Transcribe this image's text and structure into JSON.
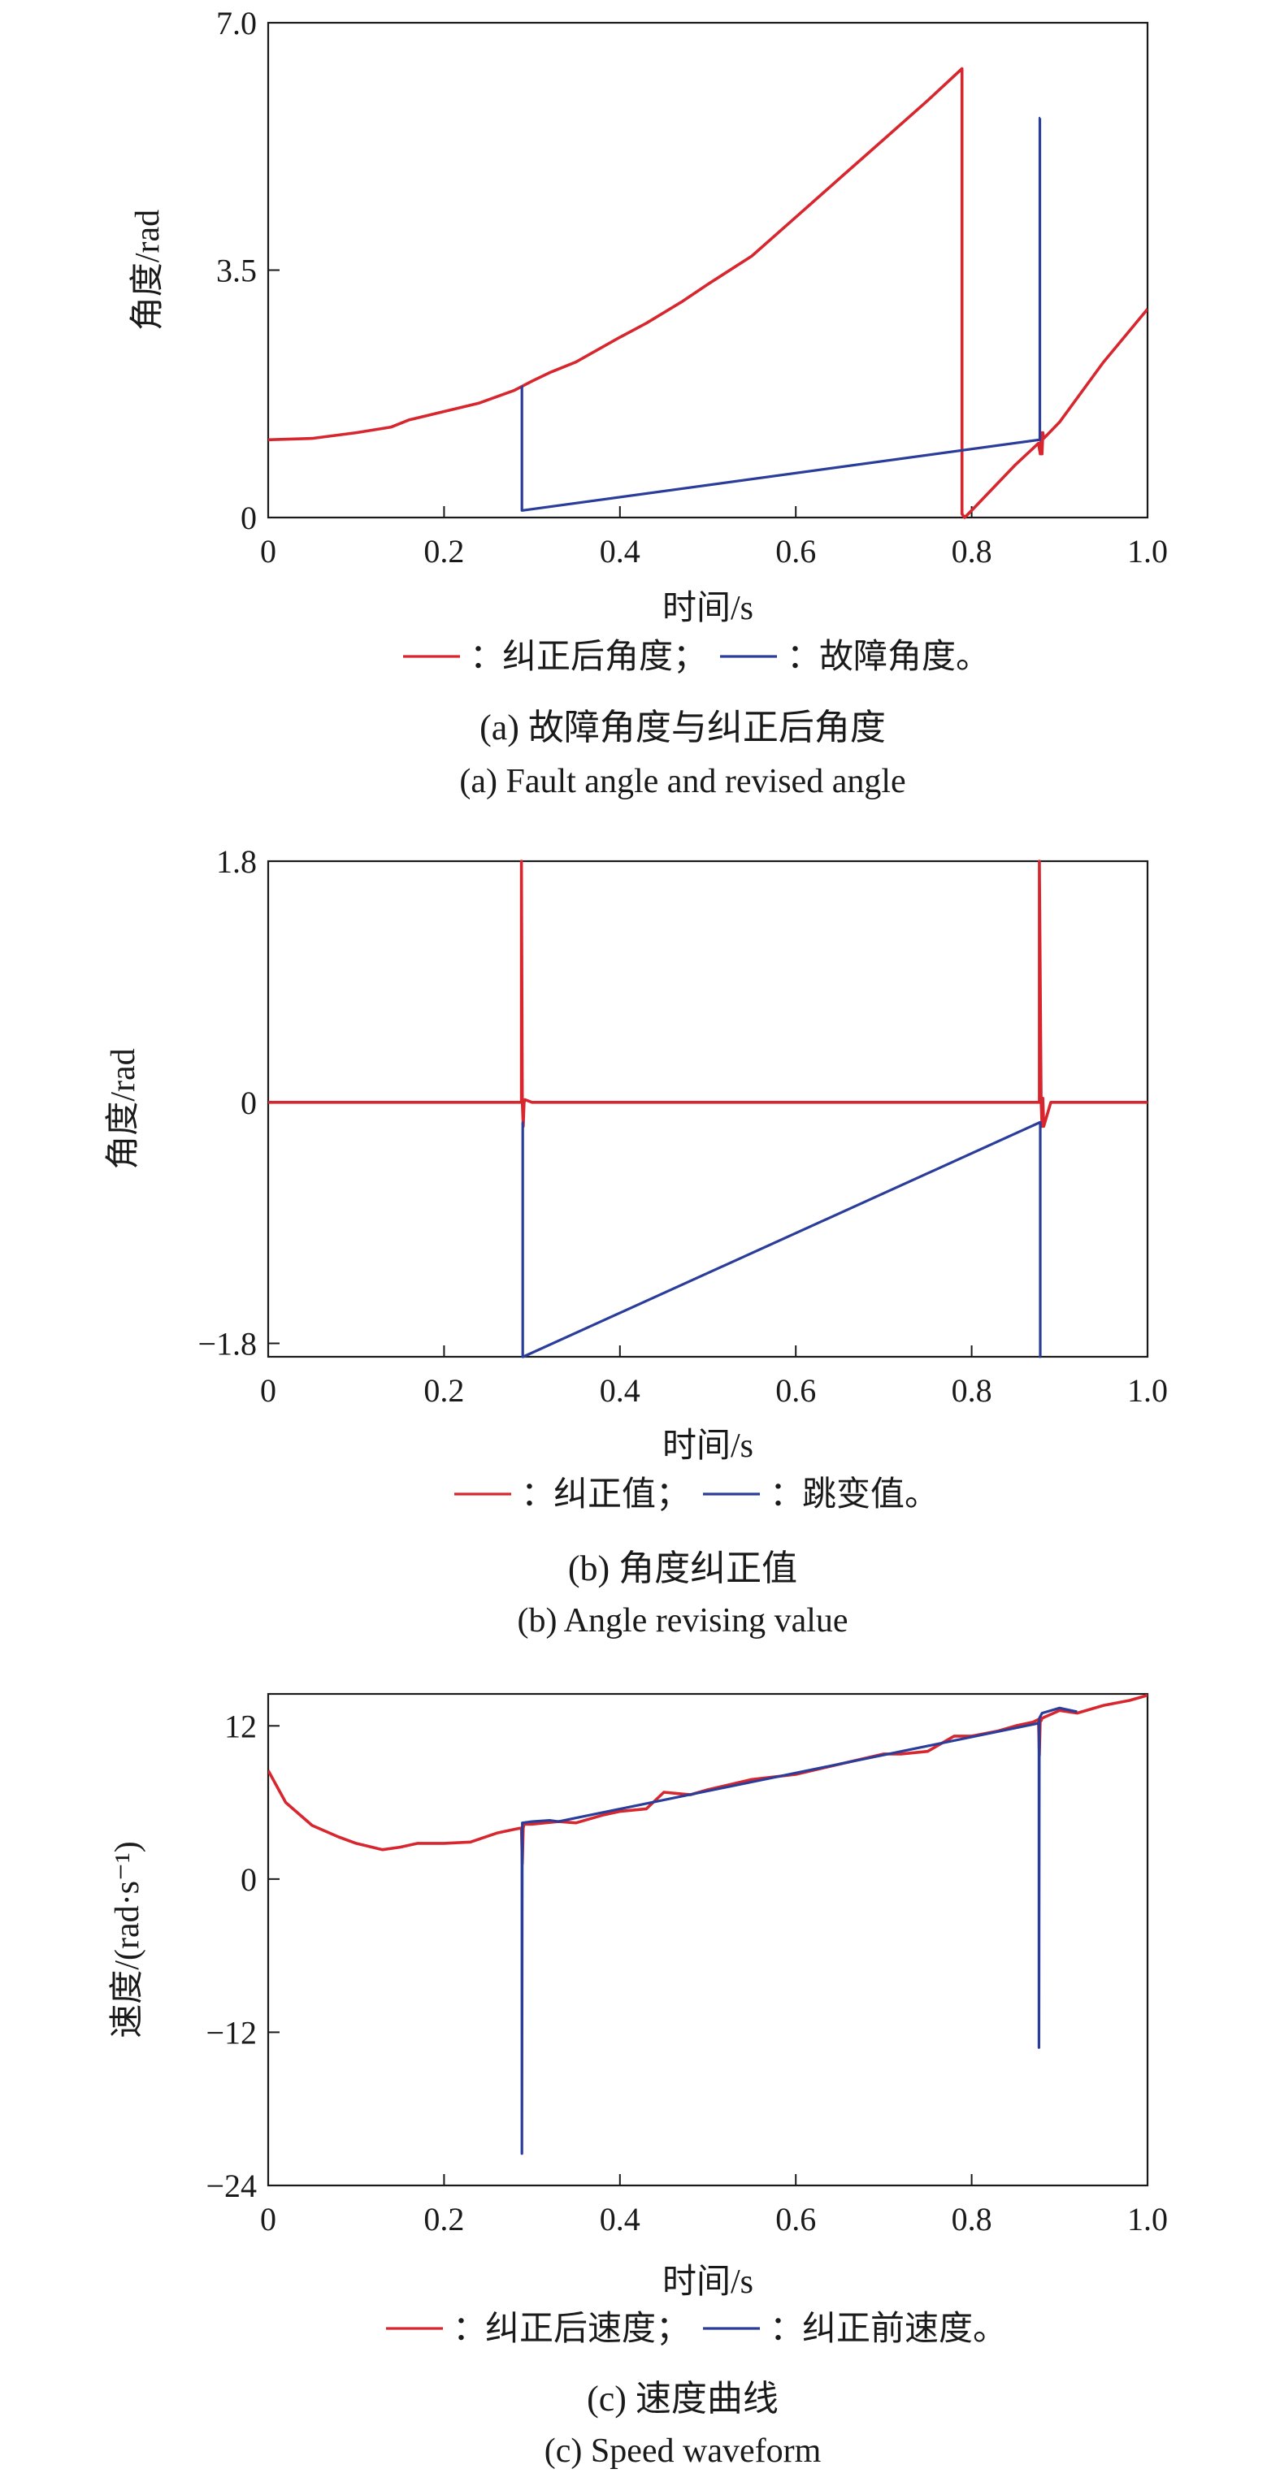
{
  "colors": {
    "revised": "#d7262e",
    "raw": "#2b3d9a",
    "axis": "#1a1a1a"
  },
  "chart_data": [
    {
      "type": "line",
      "caption_cn": "(a) 故障角度与纠正后角度",
      "caption_en": "(a) Fault angle and revised angle",
      "xlabel": "时间/s",
      "ylabel": "角度/rad",
      "xlim": [
        0,
        1.0
      ],
      "ylim": [
        0,
        7.0
      ],
      "xticks": [
        0,
        0.2,
        0.4,
        0.6,
        0.8,
        1.0
      ],
      "xtick_labels": [
        "0",
        "0.2",
        "0.4",
        "0.6",
        "0.8",
        "1.0"
      ],
      "yticks": [
        0,
        3.5,
        7.0
      ],
      "ytick_labels": [
        "0",
        "3.5",
        "7.0"
      ],
      "grid": false,
      "legend": {
        "prefix": "：",
        "separator": "；",
        "terminator": "。"
      },
      "series": [
        {
          "name": "纠正后角度",
          "color": "#d7262e",
          "x": [
            0,
            0.05,
            0.1,
            0.14,
            0.16,
            0.2,
            0.24,
            0.28,
            0.3,
            0.32,
            0.35,
            0.4,
            0.43,
            0.47,
            0.5,
            0.55,
            0.6,
            0.65,
            0.7,
            0.75,
            0.789,
            0.789,
            0.792,
            0.8,
            0.85,
            0.876,
            0.878,
            0.879,
            0.88,
            0.881,
            0.882,
            0.9,
            0.95,
            1.0
          ],
          "y": [
            1.1,
            1.12,
            1.2,
            1.28,
            1.38,
            1.5,
            1.62,
            1.8,
            1.93,
            2.05,
            2.2,
            2.55,
            2.75,
            3.05,
            3.3,
            3.7,
            4.25,
            4.8,
            5.35,
            5.9,
            6.35,
            0.05,
            0.0,
            0.1,
            0.75,
            1.05,
            0.9,
            1.2,
            0.9,
            1.2,
            1.12,
            1.35,
            2.2,
            2.95
          ]
        },
        {
          "name": "故障角度",
          "color": "#2b3d9a",
          "x": [
            0.288,
            0.2885,
            0.2885,
            0.289,
            0.877,
            0.8775,
            0.8775,
            0.878
          ],
          "y": [
            1.85,
            1.85,
            0.1,
            0.1,
            1.1,
            1.1,
            5.65,
            5.65
          ]
        }
      ]
    },
    {
      "type": "line",
      "caption_cn": "(b) 角度纠正值",
      "caption_en": "(b) Angle revising value",
      "xlabel": "时间/s",
      "ylabel": "角度/rad",
      "xlim": [
        0,
        1.0
      ],
      "ylim": [
        -1.9,
        1.8
      ],
      "xticks": [
        0,
        0.2,
        0.4,
        0.6,
        0.8,
        1.0
      ],
      "xtick_labels": [
        "0",
        "0.2",
        "0.4",
        "0.6",
        "0.8",
        "1.0"
      ],
      "yticks": [
        -1.8,
        0,
        1.8
      ],
      "ytick_labels": [
        "−1.8",
        "0",
        "1.8"
      ],
      "grid": false,
      "legend": {
        "prefix": "：",
        "separator": "；",
        "terminator": "。"
      },
      "series": [
        {
          "name": "纠正值",
          "color": "#d7262e",
          "x": [
            0,
            0.287,
            0.288,
            0.288,
            0.289,
            0.29,
            0.291,
            0.292,
            0.3,
            0.876,
            0.877,
            0.877,
            0.879,
            0.88,
            0.881,
            0.882,
            0.89,
            1.0
          ],
          "y": [
            0,
            0,
            0,
            1.8,
            0,
            -0.18,
            0,
            0.02,
            0,
            0,
            0,
            1.8,
            0,
            -0.18,
            0.03,
            -0.18,
            0,
            0
          ]
        },
        {
          "name": "跳变值",
          "color": "#2b3d9a",
          "x": [
            0.289,
            0.2895,
            0.2895,
            0.29,
            0.8775,
            0.878,
            0.878,
            0.8785
          ],
          "y": [
            -0.15,
            -0.15,
            -1.9,
            -1.9,
            -0.15,
            -0.15,
            -1.9,
            -1.9
          ]
        }
      ]
    },
    {
      "type": "line",
      "caption_cn": "(c) 速度曲线",
      "caption_en": "(c) Speed waveform",
      "xlabel": "时间/s",
      "ylabel": "速度/(rad·s⁻¹)",
      "xlim": [
        0,
        1.0
      ],
      "ylim": [
        -24,
        14.5
      ],
      "xticks": [
        0,
        0.2,
        0.4,
        0.6,
        0.8,
        1.0
      ],
      "xtick_labels": [
        "0",
        "0.2",
        "0.4",
        "0.6",
        "0.8",
        "1.0"
      ],
      "yticks": [
        -24,
        -12,
        0,
        12
      ],
      "ytick_labels": [
        "−24",
        "−12",
        "0",
        "12"
      ],
      "grid": false,
      "legend": {
        "prefix": "：",
        "separator": "；",
        "terminator": "。"
      },
      "series": [
        {
          "name": "纠正后速度",
          "color": "#d7262e",
          "x": [
            0,
            0.02,
            0.05,
            0.08,
            0.1,
            0.13,
            0.15,
            0.17,
            0.2,
            0.23,
            0.26,
            0.28,
            0.288,
            0.289,
            0.29,
            0.291,
            0.3,
            0.33,
            0.35,
            0.38,
            0.4,
            0.43,
            0.45,
            0.48,
            0.5,
            0.55,
            0.6,
            0.65,
            0.7,
            0.72,
            0.75,
            0.78,
            0.8,
            0.83,
            0.85,
            0.87,
            0.876,
            0.877,
            0.878,
            0.879,
            0.88,
            0.9,
            0.92,
            0.95,
            0.98,
            1.0
          ],
          "y": [
            8.5,
            6.0,
            4.2,
            3.3,
            2.8,
            2.3,
            2.5,
            2.8,
            2.8,
            2.9,
            3.6,
            3.9,
            4.0,
            1.2,
            4.0,
            4.3,
            4.3,
            4.5,
            4.4,
            5.0,
            5.3,
            5.5,
            6.8,
            6.6,
            7.0,
            7.8,
            8.2,
            9.0,
            9.8,
            9.8,
            10.0,
            11.2,
            11.2,
            11.6,
            12.0,
            12.3,
            12.5,
            9.7,
            12.6,
            12.4,
            12.6,
            13.2,
            13.0,
            13.6,
            14.0,
            14.4
          ]
        },
        {
          "name": "纠正前速度",
          "color": "#2b3d9a",
          "x": [
            0.288,
            0.2885,
            0.2885,
            0.289,
            0.3,
            0.32,
            0.33,
            0.876,
            0.8765,
            0.8765,
            0.877,
            0.88,
            0.9,
            0.92
          ],
          "y": [
            3.9,
            3.9,
            -21.5,
            4.4,
            4.5,
            4.6,
            4.5,
            12.2,
            12.2,
            -13.2,
            12.6,
            13.0,
            13.4,
            13.1
          ]
        }
      ]
    }
  ]
}
